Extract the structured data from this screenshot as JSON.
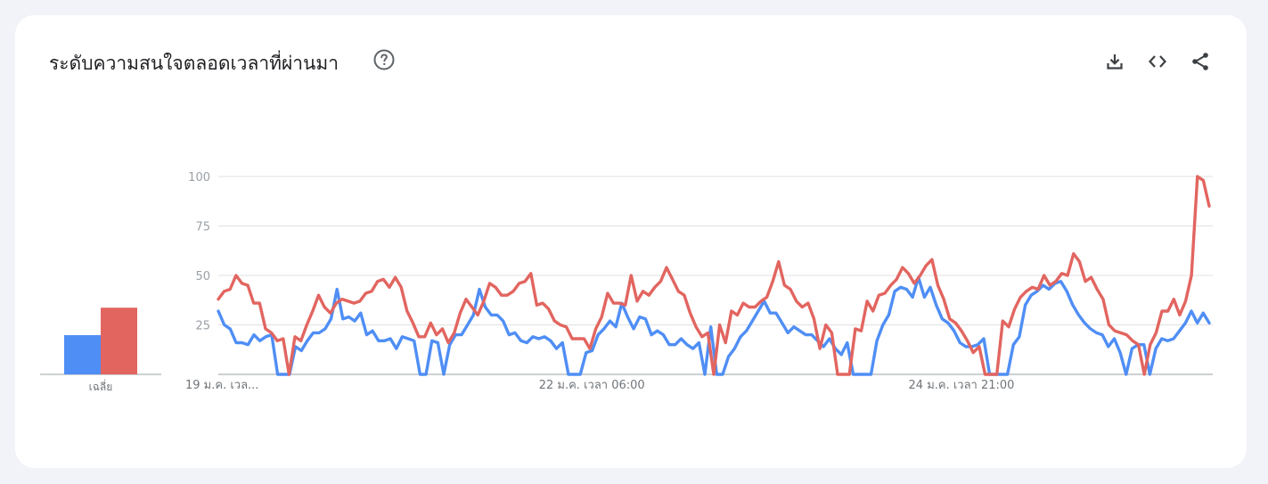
{
  "header": {
    "title": "ระดับความสนใจตลอดเวลาที่ผ่านมา",
    "icons": [
      "help-icon",
      "download-icon",
      "embed-icon",
      "share-icon"
    ]
  },
  "colors": {
    "series_1": "#4f8ef5",
    "series_2": "#e26560",
    "grid": "#e0e0e0",
    "axis": "#9aa0a6"
  },
  "averages_label": "เฉลี่ย",
  "chart_data": {
    "type": "line",
    "title": "ระดับความสนใจตลอดเวลาที่ผ่านมา",
    "ylim": [
      0,
      100
    ],
    "yticks": [
      25,
      50,
      75,
      100
    ],
    "x_tick_labels": [
      "19 ม.ค. เวล...",
      "22 ม.ค. เวลา 06:00",
      "24 ม.ค. เวลา 21:00"
    ],
    "grid": true,
    "averages": [
      {
        "series": 0,
        "value": 20
      },
      {
        "series": 1,
        "value": 34
      }
    ],
    "series": [
      {
        "color": "#4f8ef5",
        "values": [
          32,
          25,
          23,
          16,
          16,
          15,
          20,
          17,
          19,
          20,
          0,
          0,
          0,
          14,
          12,
          17,
          21,
          21,
          23,
          28,
          43,
          28,
          29,
          27,
          31,
          20,
          22,
          17,
          17,
          18,
          13,
          19,
          18,
          17,
          0,
          0,
          17,
          16,
          0,
          15,
          20,
          20,
          25,
          30,
          43,
          34,
          30,
          30,
          27,
          20,
          21,
          17,
          16,
          19,
          18,
          19,
          17,
          13,
          16,
          0,
          0,
          0,
          11,
          12,
          20,
          23,
          27,
          24,
          36,
          29,
          23,
          29,
          28,
          20,
          22,
          20,
          15,
          15,
          18,
          15,
          13,
          16,
          0,
          24,
          0,
          0,
          9,
          13,
          19,
          22,
          27,
          32,
          37,
          31,
          31,
          26,
          21,
          24,
          22,
          20,
          20,
          17,
          14,
          18,
          13,
          10,
          16,
          0,
          0,
          0,
          0,
          17,
          25,
          30,
          42,
          44,
          43,
          39,
          49,
          39,
          44,
          35,
          28,
          26,
          22,
          16,
          14,
          14,
          15,
          18,
          0,
          0,
          0,
          0,
          15,
          19,
          35,
          40,
          42,
          45,
          43,
          46,
          47,
          42,
          35,
          30,
          26,
          23,
          21,
          20,
          14,
          18,
          11,
          0,
          13,
          15,
          15,
          0,
          13,
          18,
          17,
          18,
          22,
          26,
          32,
          26,
          31,
          26
        ]
      },
      {
        "color": "#e26560",
        "values": [
          38,
          42,
          43,
          50,
          46,
          45,
          36,
          36,
          23,
          21,
          17,
          18,
          0,
          19,
          17,
          25,
          32,
          40,
          34,
          31,
          36,
          38,
          37,
          36,
          37,
          41,
          42,
          47,
          48,
          44,
          49,
          44,
          32,
          26,
          19,
          19,
          26,
          20,
          23,
          16,
          21,
          31,
          38,
          34,
          30,
          37,
          46,
          44,
          40,
          40,
          42,
          46,
          47,
          51,
          35,
          36,
          33,
          27,
          25,
          24,
          18,
          18,
          18,
          13,
          23,
          29,
          41,
          36,
          36,
          35,
          50,
          37,
          42,
          40,
          44,
          47,
          54,
          48,
          42,
          40,
          31,
          24,
          19,
          21,
          0,
          25,
          16,
          32,
          30,
          36,
          34,
          34,
          37,
          39,
          47,
          57,
          45,
          43,
          37,
          34,
          36,
          28,
          13,
          25,
          21,
          0,
          0,
          0,
          23,
          22,
          37,
          32,
          40,
          41,
          45,
          48,
          54,
          51,
          46,
          50,
          55,
          58,
          45,
          38,
          28,
          26,
          22,
          17,
          11,
          14,
          0,
          0,
          0,
          27,
          24,
          33,
          39,
          42,
          44,
          43,
          50,
          45,
          47,
          51,
          50,
          61,
          57,
          47,
          49,
          43,
          38,
          25,
          22,
          21,
          20,
          17,
          15,
          0,
          15,
          21,
          32,
          32,
          38,
          30,
          37,
          50,
          100,
          98,
          85
        ]
      }
    ]
  }
}
